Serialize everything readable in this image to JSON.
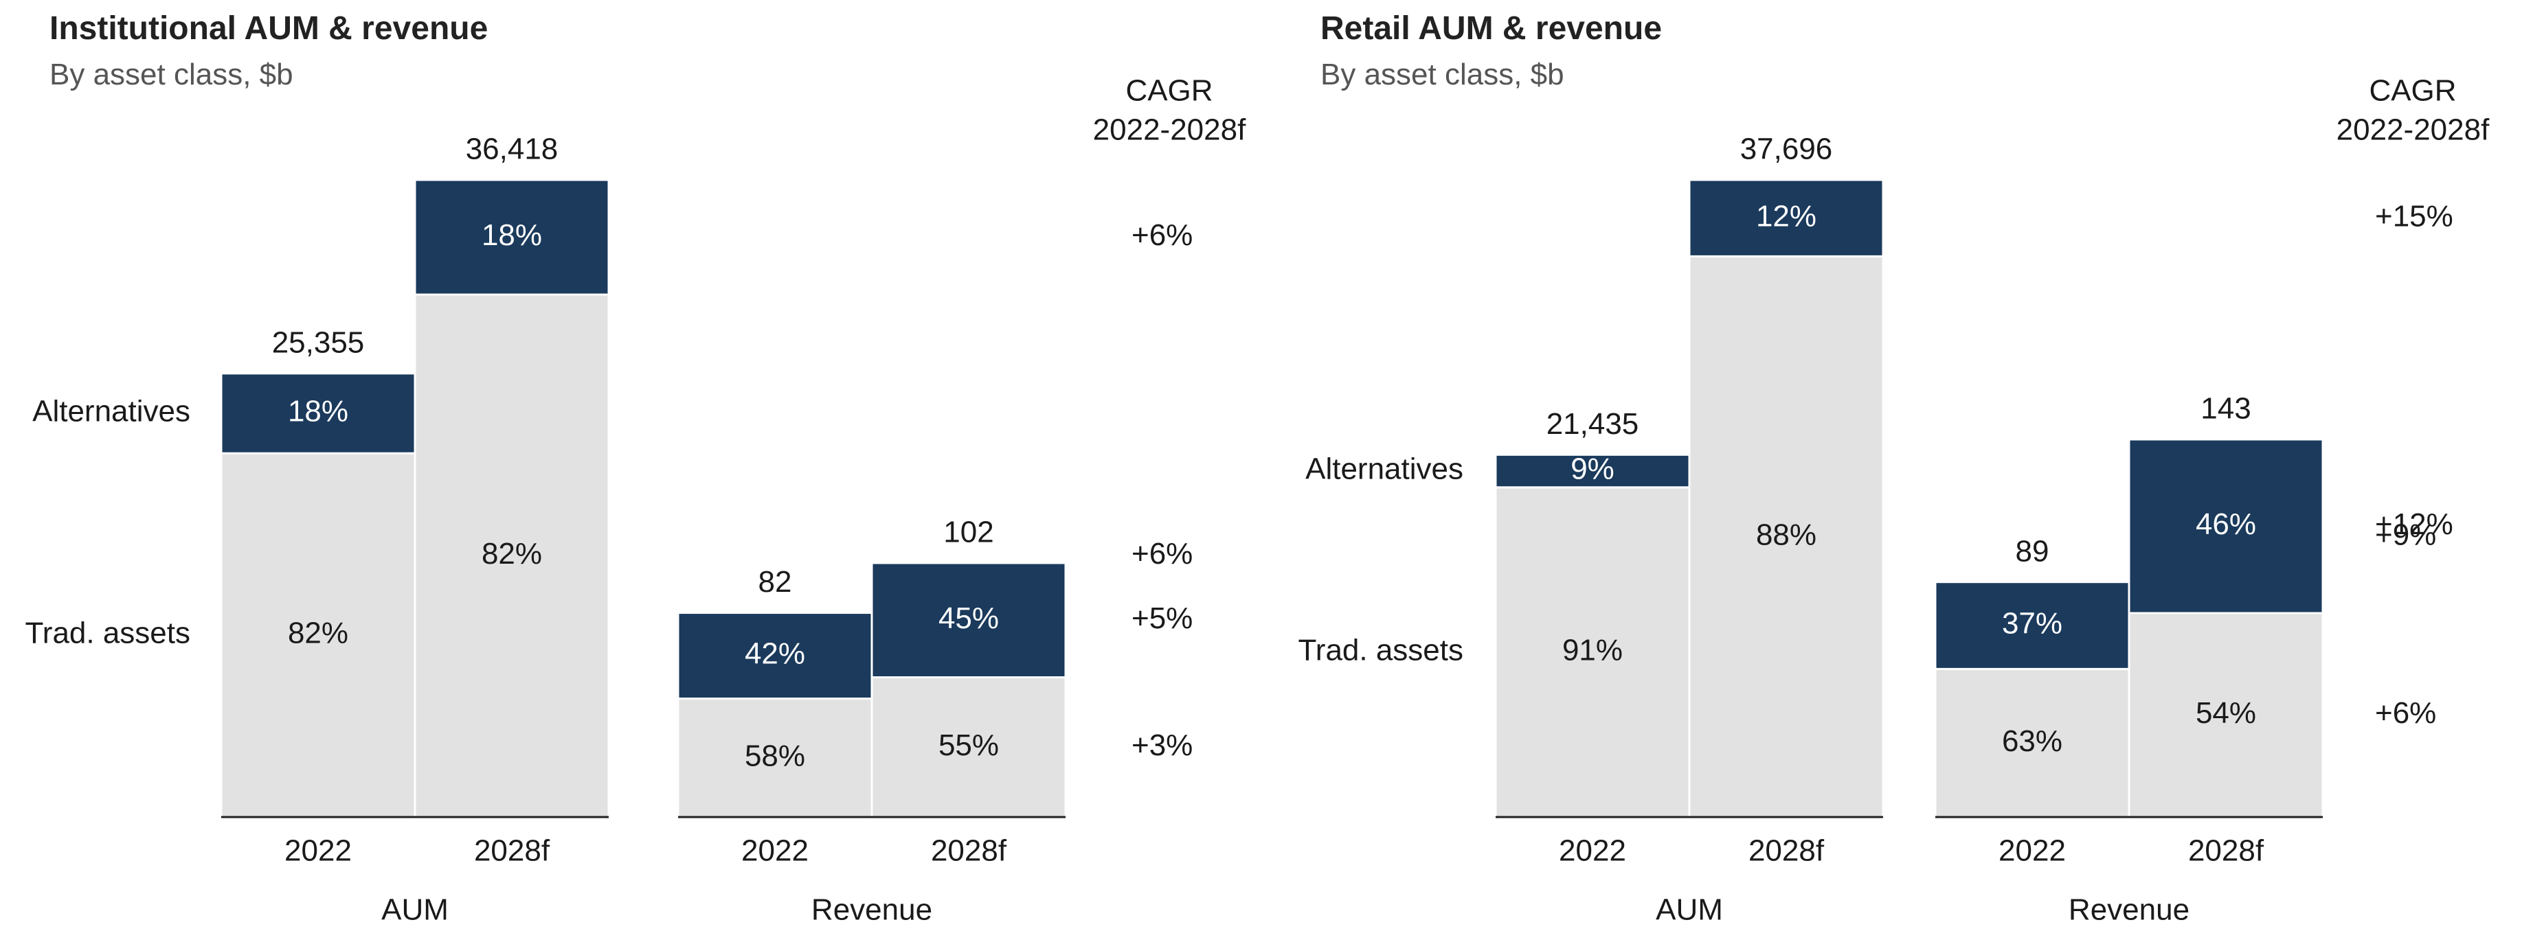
{
  "colors": {
    "alternatives": "#1b3a5c",
    "trad": "#e2e2e2",
    "axis": "#222222",
    "text": "#1a1a1a"
  },
  "chart_data": [
    {
      "type": "bar",
      "title": "Institutional AUM & revenue",
      "subtitle": "By asset class, $b",
      "cagr_header": [
        "CAGR",
        "2022-2028f"
      ],
      "row_labels": [
        "Alternatives",
        "Trad. assets"
      ],
      "groups": [
        {
          "name": "AUM",
          "categories": [
            "2022",
            "2028f"
          ],
          "totals": [
            25355,
            36418
          ],
          "total_labels": [
            "25,355",
            "36,418"
          ],
          "series": [
            {
              "name": "Trad. assets",
              "shares": [
                82,
                82
              ],
              "labels": [
                "82%",
                "82%"
              ]
            },
            {
              "name": "Alternatives",
              "shares": [
                18,
                18
              ],
              "labels": [
                "18%",
                "18%"
              ]
            }
          ],
          "cagr": {
            "Alternatives": "+6%",
            "Trad. assets": "+6%"
          }
        },
        {
          "name": "Revenue",
          "categories": [
            "2022",
            "2028f"
          ],
          "totals": [
            82,
            102
          ],
          "total_labels": [
            "82",
            "102"
          ],
          "series": [
            {
              "name": "Trad. assets",
              "shares": [
                58,
                55
              ],
              "labels": [
                "58%",
                "55%"
              ]
            },
            {
              "name": "Alternatives",
              "shares": [
                42,
                45
              ],
              "labels": [
                "42%",
                "45%"
              ]
            }
          ],
          "cagr": {
            "Alternatives": "+5%",
            "Trad. assets": "+3%"
          }
        }
      ]
    },
    {
      "type": "bar",
      "title": "Retail AUM & revenue",
      "subtitle": "By asset class, $b",
      "cagr_header": [
        "CAGR",
        "2022-2028f"
      ],
      "row_labels": [
        "Alternatives",
        "Trad. assets"
      ],
      "groups": [
        {
          "name": "AUM",
          "categories": [
            "2022",
            "2028f"
          ],
          "totals": [
            21435,
            37696
          ],
          "total_labels": [
            "21,435",
            "37,696"
          ],
          "series": [
            {
              "name": "Trad. assets",
              "shares": [
                91,
                88
              ],
              "labels": [
                "91%",
                "88%"
              ]
            },
            {
              "name": "Alternatives",
              "shares": [
                9,
                12
              ],
              "labels": [
                "9%",
                "12%"
              ]
            }
          ],
          "cagr": {
            "Alternatives": "+15%",
            "Trad. assets": "+9%"
          }
        },
        {
          "name": "Revenue",
          "categories": [
            "2022",
            "2028f"
          ],
          "totals": [
            89,
            143
          ],
          "total_labels": [
            "89",
            "143"
          ],
          "series": [
            {
              "name": "Trad. assets",
              "shares": [
                63,
                54
              ],
              "labels": [
                "63%",
                "54%"
              ]
            },
            {
              "name": "Alternatives",
              "shares": [
                37,
                46
              ],
              "labels": [
                "37%",
                "46%"
              ]
            }
          ],
          "cagr": {
            "Alternatives": "+12%",
            "Trad. assets": "+6%"
          }
        }
      ]
    }
  ]
}
